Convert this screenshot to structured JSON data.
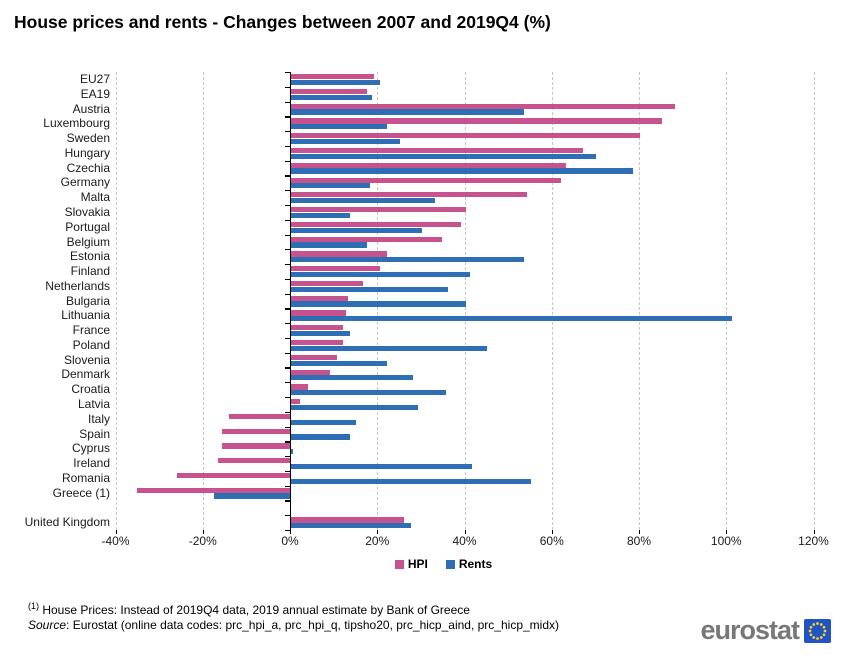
{
  "chart_data": {
    "type": "bar",
    "orientation": "horizontal",
    "title": "House prices and rents - Changes between 2007 and 2019Q4 (%)",
    "unit": "%",
    "categories": [
      "EU27",
      "EA19",
      "Austria",
      "Luxembourg",
      "Sweden",
      "Hungary",
      "Czechia",
      "Germany",
      "Malta",
      "Slovakia",
      "Portugal",
      "Belgium",
      "Estonia",
      "Finland",
      "Netherlands",
      "Bulgaria",
      "Lithuania",
      "France",
      "Poland",
      "Slovenia",
      "Denmark",
      "Croatia",
      "Latvia",
      "Italy",
      "Spain",
      "Cyprus",
      "Ireland",
      "Romania",
      "Greece (1)",
      "United Kingdom"
    ],
    "series": [
      {
        "name": "HPI",
        "color": "#C7538E",
        "values": [
          19,
          17.5,
          88,
          85,
          80,
          67,
          63,
          62,
          54,
          40,
          39,
          34.5,
          22,
          20.5,
          16.5,
          13,
          12.5,
          12,
          12,
          10.5,
          9,
          4,
          2,
          -14,
          -15.5,
          -15.5,
          -16.5,
          -26,
          -35,
          26
        ]
      },
      {
        "name": "Rents",
        "color": "#2E6EB5",
        "values": [
          20.5,
          18.5,
          53.5,
          22,
          25,
          70,
          78.5,
          18,
          33,
          13.5,
          30,
          17.5,
          53.5,
          41,
          36,
          40,
          101,
          13.5,
          45,
          22,
          28,
          35.5,
          29,
          15,
          13.5,
          0.5,
          41.5,
          55,
          -17.5,
          27.5
        ]
      }
    ],
    "xlim": [
      -40,
      120
    ],
    "x_tick_step": 20,
    "x_tick_labels": [
      "-40%",
      "-20%",
      "0%",
      "20%",
      "40%",
      "60%",
      "80%",
      "100%",
      "120%"
    ],
    "grid": "vertical-dashed",
    "legend_position": "bottom",
    "separated_categories": [
      "United Kingdom"
    ]
  },
  "footnotes": {
    "marker": "(1)",
    "greece_note": " House Prices: Instead of 2019Q4 data, 2019 annual estimate by Bank of Greece",
    "source_label": "Source",
    "source_rest": ": Eurostat (online data codes: prc_hpi_a, prc_hpi_q, tipsho20, prc_hicp_aind, prc_hicp_midx)"
  },
  "logo": {
    "text": "eurostat",
    "text_color": "#787878",
    "flag_blue": "#2053C4",
    "star_yellow": "#FFD21D"
  }
}
